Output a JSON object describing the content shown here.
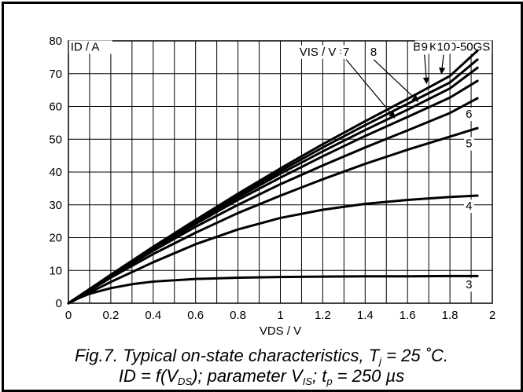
{
  "chart_data": {
    "type": "line",
    "title": "",
    "device": "BUK110-50GS",
    "ylabel": "ID / A",
    "xlabel": "VDS / V",
    "parameter_label": "VIS / V =",
    "xlim": [
      0,
      2
    ],
    "ylim": [
      0,
      80
    ],
    "x_ticks": [
      0,
      0.2,
      0.4,
      0.6,
      0.8,
      1,
      1.2,
      1.4,
      1.6,
      1.8,
      2
    ],
    "x_tick_labels": [
      "0",
      "0.2",
      "0.4",
      "0.6",
      "0.8",
      "1",
      "1.2",
      "1.4",
      "1.6",
      "1.8",
      "2"
    ],
    "y_ticks": [
      0,
      10,
      20,
      30,
      40,
      50,
      60,
      70,
      80
    ],
    "y_tick_labels": [
      "0",
      "10",
      "20",
      "30",
      "40",
      "50",
      "60",
      "70",
      "80"
    ],
    "grid": true,
    "series": [
      {
        "name": "3",
        "x": [
          0,
          0.05,
          0.1,
          0.2,
          0.3,
          0.4,
          0.6,
          0.8,
          1.0,
          1.2,
          1.4,
          1.6,
          1.8,
          1.93
        ],
        "y": [
          0,
          1.6,
          2.9,
          4.6,
          5.8,
          6.6,
          7.4,
          7.8,
          8.0,
          8.1,
          8.2,
          8.2,
          8.3,
          8.3
        ]
      },
      {
        "name": "4",
        "x": [
          0,
          0.2,
          0.4,
          0.6,
          0.8,
          1.0,
          1.2,
          1.4,
          1.6,
          1.8,
          1.93
        ],
        "y": [
          0,
          6.5,
          12.5,
          18.0,
          22.5,
          26.0,
          28.5,
          30.3,
          31.5,
          32.4,
          32.8
        ]
      },
      {
        "name": "5",
        "x": [
          0,
          0.2,
          0.4,
          0.6,
          0.8,
          1.0,
          1.2,
          1.4,
          1.6,
          1.8,
          1.93
        ],
        "y": [
          0,
          7.8,
          15.0,
          21.5,
          27.5,
          32.8,
          37.8,
          42.5,
          46.8,
          50.8,
          53.4
        ]
      },
      {
        "name": "6",
        "x": [
          0,
          0.2,
          0.4,
          0.6,
          0.8,
          1.0,
          1.2,
          1.4,
          1.6,
          1.8,
          1.93
        ],
        "y": [
          0,
          8.2,
          16.0,
          23.3,
          30.0,
          36.3,
          42.0,
          47.5,
          52.7,
          58.0,
          62.5
        ]
      },
      {
        "name": "7",
        "x": [
          0,
          0.2,
          0.4,
          0.6,
          0.8,
          1.0,
          1.2,
          1.4,
          1.6,
          1.8,
          1.93
        ],
        "y": [
          0,
          8.4,
          16.5,
          24.2,
          31.5,
          38.3,
          44.8,
          51.0,
          56.8,
          62.7,
          67.8
        ]
      },
      {
        "name": "8",
        "x": [
          0,
          0.2,
          0.4,
          0.6,
          0.8,
          1.0,
          1.2,
          1.4,
          1.6,
          1.8,
          1.93
        ],
        "y": [
          0,
          8.5,
          16.8,
          24.8,
          32.3,
          39.5,
          46.3,
          52.8,
          59.0,
          65.5,
          71.8
        ]
      },
      {
        "name": "9",
        "x": [
          0,
          0.2,
          0.4,
          0.6,
          0.8,
          1.0,
          1.2,
          1.4,
          1.6,
          1.8,
          1.93
        ],
        "y": [
          0,
          8.6,
          17.0,
          25.1,
          32.8,
          40.3,
          47.5,
          54.3,
          60.8,
          67.3,
          74.3
        ]
      },
      {
        "name": "10",
        "x": [
          0,
          0.2,
          0.4,
          0.6,
          0.8,
          1.0,
          1.2,
          1.4,
          1.6,
          1.8,
          1.93
        ],
        "y": [
          0,
          8.7,
          17.2,
          25.4,
          33.4,
          41.1,
          48.5,
          55.5,
          62.3,
          69.3,
          77.0
        ]
      }
    ],
    "end_labels": [
      {
        "text": "3",
        "x": 1.89,
        "y": 4.5
      },
      {
        "text": "4",
        "x": 1.89,
        "y": 28.5
      },
      {
        "text": "5",
        "x": 1.89,
        "y": 47.5
      },
      {
        "text": "6",
        "x": 1.89,
        "y": 56.5
      }
    ],
    "arrow_labels": [
      {
        "text": "7",
        "x": 1.31,
        "y": 75.5,
        "tip_x": 1.54,
        "tip_y": 56.5
      },
      {
        "text": "8",
        "x": 1.44,
        "y": 75.5,
        "tip_x": 1.65,
        "tip_y": 61.5
      },
      {
        "text": "9",
        "x": 1.68,
        "y": 77.0,
        "tip_x": 1.69,
        "tip_y": 67.0
      },
      {
        "text": "10",
        "x": 1.77,
        "y": 77.0,
        "tip_x": 1.76,
        "tip_y": 70.0
      }
    ],
    "parameter_label_pos": {
      "x": 1.09,
      "y": 75.5
    }
  },
  "caption": {
    "line1_a": "Fig.7.   Typical on-state characteristics, T",
    "line1_sub": "j",
    "line1_b": " = 25 ˚C.",
    "line2_a": "ID = f(V",
    "line2_sub1": "DS",
    "line2_b": "); parameter V",
    "line2_sub2": "IS",
    "line2_c": "; t",
    "line2_sub3": "p",
    "line2_d": " = 250 µs"
  }
}
